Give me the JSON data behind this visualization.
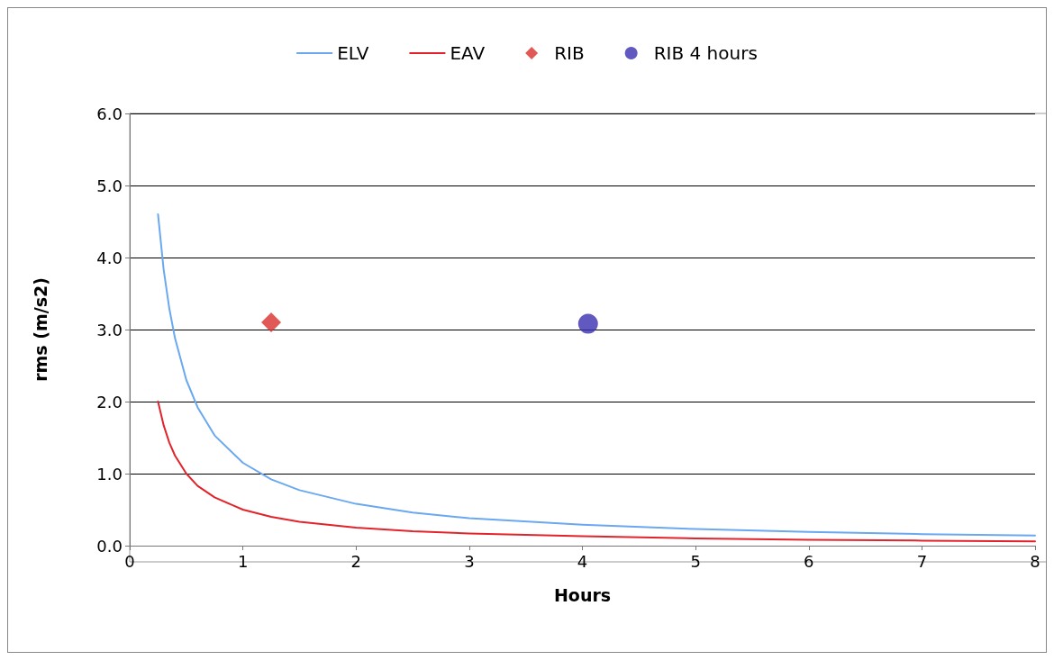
{
  "chart_data": {
    "type": "line",
    "xlabel": "Hours",
    "ylabel": "rms (m/s2)",
    "xlim": [
      0,
      8
    ],
    "xticks": [
      0,
      1,
      2,
      3,
      4,
      5,
      6,
      7,
      8
    ],
    "ylim": [
      0,
      6
    ],
    "yticks": [
      {
        "value": 0,
        "label": "0.0"
      },
      {
        "value": 1,
        "label": "1.0"
      },
      {
        "value": 2,
        "label": "2.0"
      },
      {
        "value": 3,
        "label": "3.0"
      },
      {
        "value": 4,
        "label": "4.0"
      },
      {
        "value": 5,
        "label": "5.0"
      },
      {
        "value": 6,
        "label": "6.0"
      }
    ],
    "grid": "y",
    "legend": "top",
    "line_style": "solid",
    "series": [
      {
        "name": "ELV",
        "color": "#6aa8f0",
        "marker": "none",
        "x": [
          0.25,
          0.3,
          0.35,
          0.4,
          0.5,
          0.6,
          0.75,
          1,
          1.25,
          1.5,
          2,
          2.5,
          3,
          4,
          5,
          6,
          7,
          8
        ],
        "values": [
          4.6,
          3.83,
          3.29,
          2.88,
          2.3,
          1.92,
          1.53,
          1.15,
          0.92,
          0.77,
          0.58,
          0.46,
          0.38,
          0.29,
          0.23,
          0.19,
          0.16,
          0.14
        ]
      },
      {
        "name": "EAV",
        "color": "#e2232b",
        "marker": "none",
        "x": [
          0.25,
          0.3,
          0.35,
          0.4,
          0.5,
          0.6,
          0.75,
          1,
          1.25,
          1.5,
          2,
          2.5,
          3,
          4,
          5,
          6,
          7,
          8
        ],
        "values": [
          2.0,
          1.67,
          1.43,
          1.25,
          1.0,
          0.83,
          0.67,
          0.5,
          0.4,
          0.33,
          0.25,
          0.2,
          0.17,
          0.13,
          0.1,
          0.08,
          0.07,
          0.06
        ]
      },
      {
        "name": "RIB",
        "type": "scatter",
        "color": "#d9302c",
        "marker": "diamond",
        "x": [
          1.25
        ],
        "values": [
          3.1
        ]
      },
      {
        "name": "RIB 4 hours",
        "type": "scatter",
        "color": "#3b2fb0",
        "marker": "circle",
        "x": [
          4.05
        ],
        "values": [
          3.08
        ]
      }
    ]
  }
}
